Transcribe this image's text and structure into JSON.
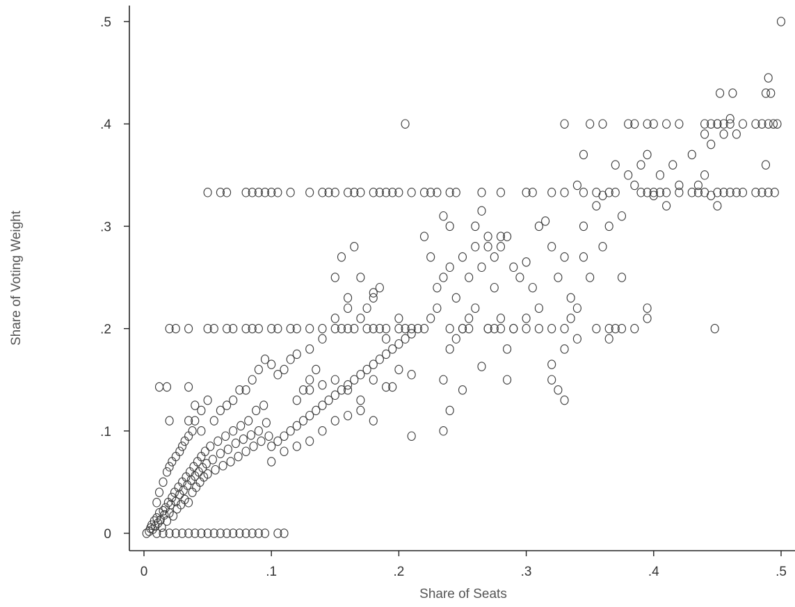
{
  "chart_data": {
    "type": "scatter",
    "xlabel": "Share of Seats",
    "ylabel": "Share of Voting Weight",
    "xlim": [
      0,
      0.5
    ],
    "ylim": [
      0,
      0.5
    ],
    "xticks": [
      {
        "value": 0,
        "label": "0"
      },
      {
        "value": 0.1,
        "label": ".1"
      },
      {
        "value": 0.2,
        "label": ".2"
      },
      {
        "value": 0.3,
        "label": ".3"
      },
      {
        "value": 0.4,
        "label": ".4"
      },
      {
        "value": 0.5,
        "label": ".5"
      }
    ],
    "yticks": [
      {
        "value": 0,
        "label": "0"
      },
      {
        "value": 0.1,
        "label": ".1"
      },
      {
        "value": 0.2,
        "label": ".2"
      },
      {
        "value": 0.3,
        "label": ".3"
      },
      {
        "value": 0.4,
        "label": ".4"
      },
      {
        "value": 0.5,
        "label": ".5"
      }
    ],
    "grid": false,
    "marker": "hollow-circle",
    "points": [
      [
        0.002,
        0.0
      ],
      [
        0.004,
        0.002
      ],
      [
        0.005,
        0.005
      ],
      [
        0.006,
        0.008
      ],
      [
        0.007,
        0.004
      ],
      [
        0.008,
        0.012
      ],
      [
        0.009,
        0.007
      ],
      [
        0.01,
        0.015
      ],
      [
        0.011,
        0.01
      ],
      [
        0.012,
        0.02
      ],
      [
        0.013,
        0.013
      ],
      [
        0.014,
        0.006
      ],
      [
        0.015,
        0.022
      ],
      [
        0.016,
        0.018
      ],
      [
        0.017,
        0.025
      ],
      [
        0.018,
        0.012
      ],
      [
        0.019,
        0.03
      ],
      [
        0.02,
        0.02
      ],
      [
        0.021,
        0.028
      ],
      [
        0.022,
        0.035
      ],
      [
        0.023,
        0.017
      ],
      [
        0.024,
        0.04
      ],
      [
        0.025,
        0.031
      ],
      [
        0.026,
        0.024
      ],
      [
        0.027,
        0.045
      ],
      [
        0.028,
        0.038
      ],
      [
        0.029,
        0.028
      ],
      [
        0.03,
        0.05
      ],
      [
        0.031,
        0.042
      ],
      [
        0.032,
        0.033
      ],
      [
        0.033,
        0.055
      ],
      [
        0.034,
        0.047
      ],
      [
        0.035,
        0.03
      ],
      [
        0.036,
        0.06
      ],
      [
        0.037,
        0.052
      ],
      [
        0.038,
        0.04
      ],
      [
        0.039,
        0.065
      ],
      [
        0.04,
        0.056
      ],
      [
        0.041,
        0.045
      ],
      [
        0.042,
        0.07
      ],
      [
        0.043,
        0.06
      ],
      [
        0.044,
        0.05
      ],
      [
        0.045,
        0.075
      ],
      [
        0.046,
        0.064
      ],
      [
        0.047,
        0.055
      ],
      [
        0.048,
        0.08
      ],
      [
        0.049,
        0.068
      ],
      [
        0.05,
        0.058
      ],
      [
        0.052,
        0.085
      ],
      [
        0.054,
        0.072
      ],
      [
        0.056,
        0.062
      ],
      [
        0.058,
        0.09
      ],
      [
        0.06,
        0.078
      ],
      [
        0.062,
        0.066
      ],
      [
        0.064,
        0.095
      ],
      [
        0.066,
        0.082
      ],
      [
        0.068,
        0.07
      ],
      [
        0.07,
        0.1
      ],
      [
        0.072,
        0.088
      ],
      [
        0.074,
        0.075
      ],
      [
        0.076,
        0.105
      ],
      [
        0.078,
        0.092
      ],
      [
        0.08,
        0.08
      ],
      [
        0.082,
        0.11
      ],
      [
        0.084,
        0.096
      ],
      [
        0.086,
        0.085
      ],
      [
        0.088,
        0.12
      ],
      [
        0.09,
        0.1
      ],
      [
        0.092,
        0.09
      ],
      [
        0.094,
        0.125
      ],
      [
        0.096,
        0.108
      ],
      [
        0.098,
        0.095
      ],
      [
        0.01,
        0.03
      ],
      [
        0.012,
        0.04
      ],
      [
        0.015,
        0.05
      ],
      [
        0.018,
        0.06
      ],
      [
        0.02,
        0.065
      ],
      [
        0.022,
        0.07
      ],
      [
        0.025,
        0.075
      ],
      [
        0.028,
        0.08
      ],
      [
        0.03,
        0.085
      ],
      [
        0.032,
        0.09
      ],
      [
        0.035,
        0.095
      ],
      [
        0.038,
        0.1
      ],
      [
        0.04,
        0.11
      ],
      [
        0.045,
        0.12
      ],
      [
        0.05,
        0.13
      ],
      [
        0.055,
        0.11
      ],
      [
        0.06,
        0.12
      ],
      [
        0.065,
        0.125
      ],
      [
        0.07,
        0.13
      ],
      [
        0.075,
        0.14
      ],
      [
        0.08,
        0.14
      ],
      [
        0.085,
        0.15
      ],
      [
        0.09,
        0.16
      ],
      [
        0.095,
        0.17
      ],
      [
        0.1,
        0.165
      ],
      [
        0.105,
        0.155
      ],
      [
        0.11,
        0.16
      ],
      [
        0.115,
        0.17
      ],
      [
        0.12,
        0.175
      ],
      [
        0.125,
        0.14
      ],
      [
        0.13,
        0.15
      ],
      [
        0.135,
        0.16
      ],
      [
        0.01,
        0.0
      ],
      [
        0.015,
        0.0
      ],
      [
        0.02,
        0.0
      ],
      [
        0.025,
        0.0
      ],
      [
        0.03,
        0.0
      ],
      [
        0.035,
        0.0
      ],
      [
        0.04,
        0.0
      ],
      [
        0.045,
        0.0
      ],
      [
        0.05,
        0.0
      ],
      [
        0.055,
        0.0
      ],
      [
        0.06,
        0.0
      ],
      [
        0.065,
        0.0
      ],
      [
        0.07,
        0.0
      ],
      [
        0.075,
        0.0
      ],
      [
        0.08,
        0.0
      ],
      [
        0.085,
        0.0
      ],
      [
        0.09,
        0.0
      ],
      [
        0.095,
        0.0
      ],
      [
        0.105,
        0.0
      ],
      [
        0.11,
        0.0
      ],
      [
        0.012,
        0.143
      ],
      [
        0.018,
        0.143
      ],
      [
        0.02,
        0.11
      ],
      [
        0.035,
        0.143
      ],
      [
        0.035,
        0.11
      ],
      [
        0.04,
        0.125
      ],
      [
        0.045,
        0.1
      ],
      [
        0.1,
        0.085
      ],
      [
        0.105,
        0.09
      ],
      [
        0.11,
        0.095
      ],
      [
        0.115,
        0.1
      ],
      [
        0.12,
        0.105
      ],
      [
        0.125,
        0.11
      ],
      [
        0.13,
        0.115
      ],
      [
        0.135,
        0.12
      ],
      [
        0.14,
        0.125
      ],
      [
        0.145,
        0.13
      ],
      [
        0.15,
        0.135
      ],
      [
        0.155,
        0.14
      ],
      [
        0.16,
        0.145
      ],
      [
        0.165,
        0.15
      ],
      [
        0.17,
        0.155
      ],
      [
        0.175,
        0.16
      ],
      [
        0.18,
        0.165
      ],
      [
        0.185,
        0.17
      ],
      [
        0.19,
        0.175
      ],
      [
        0.195,
        0.18
      ],
      [
        0.2,
        0.185
      ],
      [
        0.205,
        0.19
      ],
      [
        0.21,
        0.195
      ],
      [
        0.215,
        0.2
      ],
      [
        0.1,
        0.07
      ],
      [
        0.11,
        0.08
      ],
      [
        0.12,
        0.085
      ],
      [
        0.13,
        0.09
      ],
      [
        0.14,
        0.1
      ],
      [
        0.15,
        0.11
      ],
      [
        0.16,
        0.115
      ],
      [
        0.17,
        0.12
      ],
      [
        0.12,
        0.13
      ],
      [
        0.13,
        0.14
      ],
      [
        0.14,
        0.145
      ],
      [
        0.15,
        0.15
      ],
      [
        0.16,
        0.14
      ],
      [
        0.17,
        0.13
      ],
      [
        0.18,
        0.15
      ],
      [
        0.19,
        0.143
      ],
      [
        0.13,
        0.18
      ],
      [
        0.14,
        0.19
      ],
      [
        0.15,
        0.21
      ],
      [
        0.16,
        0.22
      ],
      [
        0.17,
        0.21
      ],
      [
        0.18,
        0.23
      ],
      [
        0.19,
        0.19
      ],
      [
        0.2,
        0.21
      ],
      [
        0.15,
        0.25
      ],
      [
        0.155,
        0.27
      ],
      [
        0.165,
        0.28
      ],
      [
        0.17,
        0.25
      ],
      [
        0.18,
        0.235
      ],
      [
        0.16,
        0.23
      ],
      [
        0.175,
        0.22
      ],
      [
        0.185,
        0.24
      ],
      [
        0.18,
        0.11
      ],
      [
        0.195,
        0.143
      ],
      [
        0.2,
        0.16
      ],
      [
        0.21,
        0.155
      ],
      [
        0.21,
        0.095
      ],
      [
        0.22,
        0.2
      ],
      [
        0.225,
        0.21
      ],
      [
        0.23,
        0.22
      ],
      [
        0.23,
        0.24
      ],
      [
        0.235,
        0.25
      ],
      [
        0.24,
        0.26
      ],
      [
        0.245,
        0.23
      ],
      [
        0.25,
        0.27
      ],
      [
        0.255,
        0.25
      ],
      [
        0.26,
        0.28
      ],
      [
        0.265,
        0.26
      ],
      [
        0.27,
        0.29
      ],
      [
        0.275,
        0.27
      ],
      [
        0.28,
        0.28
      ],
      [
        0.285,
        0.29
      ],
      [
        0.29,
        0.26
      ],
      [
        0.295,
        0.25
      ],
      [
        0.3,
        0.265
      ],
      [
        0.305,
        0.24
      ],
      [
        0.31,
        0.3
      ],
      [
        0.315,
        0.305
      ],
      [
        0.32,
        0.28
      ],
      [
        0.325,
        0.25
      ],
      [
        0.33,
        0.27
      ],
      [
        0.335,
        0.23
      ],
      [
        0.24,
        0.18
      ],
      [
        0.245,
        0.19
      ],
      [
        0.25,
        0.2
      ],
      [
        0.255,
        0.21
      ],
      [
        0.26,
        0.22
      ],
      [
        0.265,
        0.163
      ],
      [
        0.27,
        0.2
      ],
      [
        0.275,
        0.24
      ],
      [
        0.28,
        0.21
      ],
      [
        0.285,
        0.15
      ],
      [
        0.235,
        0.1
      ],
      [
        0.24,
        0.12
      ],
      [
        0.235,
        0.15
      ],
      [
        0.25,
        0.14
      ],
      [
        0.285,
        0.18
      ],
      [
        0.29,
        0.2
      ],
      [
        0.3,
        0.21
      ],
      [
        0.31,
        0.22
      ],
      [
        0.32,
        0.15
      ],
      [
        0.325,
        0.14
      ],
      [
        0.33,
        0.13
      ],
      [
        0.32,
        0.165
      ],
      [
        0.33,
        0.18
      ],
      [
        0.335,
        0.21
      ],
      [
        0.34,
        0.19
      ],
      [
        0.345,
        0.27
      ],
      [
        0.22,
        0.29
      ],
      [
        0.225,
        0.27
      ],
      [
        0.235,
        0.31
      ],
      [
        0.24,
        0.3
      ],
      [
        0.26,
        0.3
      ],
      [
        0.265,
        0.315
      ],
      [
        0.27,
        0.28
      ],
      [
        0.28,
        0.29
      ],
      [
        0.34,
        0.34
      ],
      [
        0.345,
        0.37
      ],
      [
        0.355,
        0.32
      ],
      [
        0.36,
        0.33
      ],
      [
        0.365,
        0.3
      ],
      [
        0.37,
        0.36
      ],
      [
        0.375,
        0.31
      ],
      [
        0.38,
        0.35
      ],
      [
        0.385,
        0.34
      ],
      [
        0.39,
        0.36
      ],
      [
        0.395,
        0.37
      ],
      [
        0.4,
        0.33
      ],
      [
        0.405,
        0.35
      ],
      [
        0.41,
        0.32
      ],
      [
        0.415,
        0.36
      ],
      [
        0.42,
        0.34
      ],
      [
        0.43,
        0.37
      ],
      [
        0.435,
        0.34
      ],
      [
        0.44,
        0.35
      ],
      [
        0.445,
        0.33
      ],
      [
        0.45,
        0.32
      ],
      [
        0.395,
        0.22
      ],
      [
        0.395,
        0.21
      ],
      [
        0.375,
        0.25
      ],
      [
        0.365,
        0.19
      ],
      [
        0.355,
        0.2
      ],
      [
        0.34,
        0.22
      ],
      [
        0.385,
        0.2
      ],
      [
        0.448,
        0.2
      ],
      [
        0.35,
        0.25
      ],
      [
        0.36,
        0.28
      ],
      [
        0.345,
        0.3
      ],
      [
        0.44,
        0.39
      ],
      [
        0.445,
        0.38
      ],
      [
        0.45,
        0.4
      ],
      [
        0.455,
        0.39
      ],
      [
        0.46,
        0.405
      ],
      [
        0.465,
        0.39
      ],
      [
        0.452,
        0.43
      ],
      [
        0.462,
        0.43
      ],
      [
        0.488,
        0.43
      ],
      [
        0.49,
        0.445
      ],
      [
        0.492,
        0.43
      ],
      [
        0.488,
        0.36
      ],
      [
        0.494,
        0.4
      ],
      [
        0.497,
        0.4
      ],
      [
        0.5,
        0.5
      ],
      [
        0.205,
        0.4
      ],
      [
        0.05,
        0.333
      ],
      [
        0.06,
        0.333
      ],
      [
        0.065,
        0.333
      ],
      [
        0.08,
        0.333
      ],
      [
        0.085,
        0.333
      ],
      [
        0.09,
        0.333
      ],
      [
        0.095,
        0.333
      ],
      [
        0.1,
        0.333
      ],
      [
        0.105,
        0.333
      ],
      [
        0.115,
        0.333
      ],
      [
        0.13,
        0.333
      ],
      [
        0.14,
        0.333
      ],
      [
        0.145,
        0.333
      ],
      [
        0.15,
        0.333
      ],
      [
        0.16,
        0.333
      ],
      [
        0.165,
        0.333
      ],
      [
        0.17,
        0.333
      ],
      [
        0.18,
        0.333
      ],
      [
        0.185,
        0.333
      ],
      [
        0.19,
        0.333
      ],
      [
        0.195,
        0.333
      ],
      [
        0.2,
        0.333
      ],
      [
        0.21,
        0.333
      ],
      [
        0.22,
        0.333
      ],
      [
        0.225,
        0.333
      ],
      [
        0.23,
        0.333
      ],
      [
        0.24,
        0.333
      ],
      [
        0.245,
        0.333
      ],
      [
        0.265,
        0.333
      ],
      [
        0.28,
        0.333
      ],
      [
        0.3,
        0.333
      ],
      [
        0.305,
        0.333
      ],
      [
        0.32,
        0.333
      ],
      [
        0.33,
        0.333
      ],
      [
        0.345,
        0.333
      ],
      [
        0.355,
        0.333
      ],
      [
        0.365,
        0.333
      ],
      [
        0.37,
        0.333
      ],
      [
        0.39,
        0.333
      ],
      [
        0.395,
        0.333
      ],
      [
        0.4,
        0.333
      ],
      [
        0.405,
        0.333
      ],
      [
        0.41,
        0.333
      ],
      [
        0.42,
        0.333
      ],
      [
        0.43,
        0.333
      ],
      [
        0.435,
        0.333
      ],
      [
        0.44,
        0.333
      ],
      [
        0.45,
        0.333
      ],
      [
        0.455,
        0.333
      ],
      [
        0.46,
        0.333
      ],
      [
        0.465,
        0.333
      ],
      [
        0.47,
        0.333
      ],
      [
        0.48,
        0.333
      ],
      [
        0.485,
        0.333
      ],
      [
        0.49,
        0.333
      ],
      [
        0.495,
        0.333
      ],
      [
        0.02,
        0.2
      ],
      [
        0.025,
        0.2
      ],
      [
        0.035,
        0.2
      ],
      [
        0.05,
        0.2
      ],
      [
        0.055,
        0.2
      ],
      [
        0.065,
        0.2
      ],
      [
        0.07,
        0.2
      ],
      [
        0.08,
        0.2
      ],
      [
        0.085,
        0.2
      ],
      [
        0.09,
        0.2
      ],
      [
        0.1,
        0.2
      ],
      [
        0.105,
        0.2
      ],
      [
        0.115,
        0.2
      ],
      [
        0.12,
        0.2
      ],
      [
        0.13,
        0.2
      ],
      [
        0.14,
        0.2
      ],
      [
        0.15,
        0.2
      ],
      [
        0.155,
        0.2
      ],
      [
        0.16,
        0.2
      ],
      [
        0.165,
        0.2
      ],
      [
        0.175,
        0.2
      ],
      [
        0.18,
        0.2
      ],
      [
        0.185,
        0.2
      ],
      [
        0.19,
        0.2
      ],
      [
        0.2,
        0.2
      ],
      [
        0.205,
        0.2
      ],
      [
        0.21,
        0.2
      ],
      [
        0.24,
        0.2
      ],
      [
        0.25,
        0.2
      ],
      [
        0.255,
        0.2
      ],
      [
        0.27,
        0.2
      ],
      [
        0.275,
        0.2
      ],
      [
        0.28,
        0.2
      ],
      [
        0.29,
        0.2
      ],
      [
        0.3,
        0.2
      ],
      [
        0.31,
        0.2
      ],
      [
        0.32,
        0.2
      ],
      [
        0.33,
        0.2
      ],
      [
        0.365,
        0.2
      ],
      [
        0.37,
        0.2
      ],
      [
        0.375,
        0.2
      ],
      [
        0.33,
        0.4
      ],
      [
        0.35,
        0.4
      ],
      [
        0.36,
        0.4
      ],
      [
        0.38,
        0.4
      ],
      [
        0.385,
        0.4
      ],
      [
        0.395,
        0.4
      ],
      [
        0.4,
        0.4
      ],
      [
        0.41,
        0.4
      ],
      [
        0.42,
        0.4
      ],
      [
        0.44,
        0.4
      ],
      [
        0.445,
        0.4
      ],
      [
        0.45,
        0.4
      ],
      [
        0.455,
        0.4
      ],
      [
        0.46,
        0.4
      ],
      [
        0.47,
        0.4
      ],
      [
        0.48,
        0.4
      ],
      [
        0.485,
        0.4
      ],
      [
        0.49,
        0.4
      ]
    ]
  }
}
